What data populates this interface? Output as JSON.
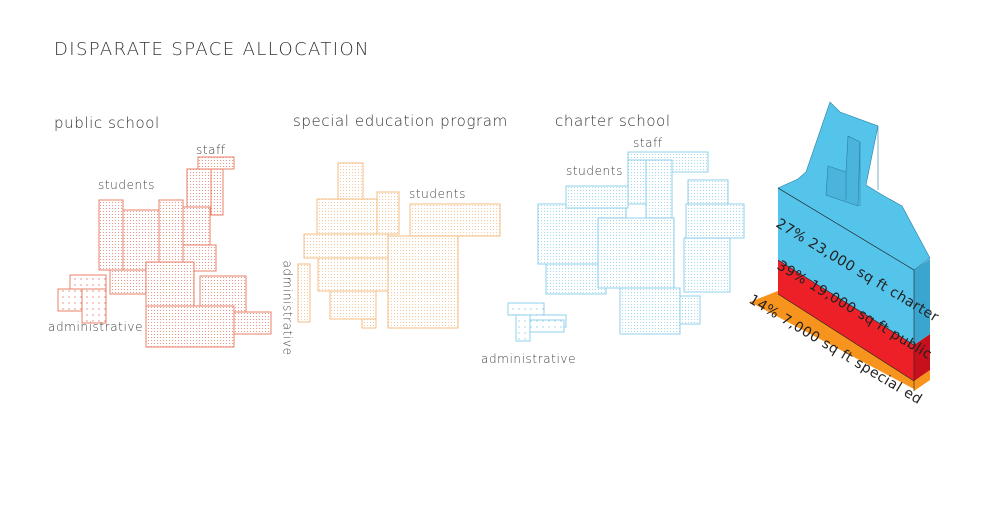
{
  "title": "DISPARATE SPACE ALLOCATION",
  "sections": {
    "public_school": {
      "heading": "public school",
      "labels": {
        "staff": "staff",
        "students": "students",
        "administrative": "administrative"
      }
    },
    "special_ed": {
      "heading": "special education program",
      "labels": {
        "students": "students",
        "administrative": "administrative"
      }
    },
    "charter_school": {
      "heading": "charter school",
      "labels": {
        "staff": "staff",
        "students": "students",
        "administrative": "administrative"
      }
    }
  },
  "chart_data": {
    "type": "stacked-isometric-block",
    "segments": [
      {
        "label": "27% 23,000 sq ft charter",
        "percent": 27,
        "sq_ft": 23000,
        "color": "#55c4ea"
      },
      {
        "label": "39% 19,000 sq ft public",
        "percent": 39,
        "sq_ft": 19000,
        "color": "#ee2027"
      },
      {
        "label": "14% 7,000 sq ft special ed",
        "percent": 14,
        "sq_ft": 7000,
        "color": "#f7941d"
      }
    ]
  },
  "colors": {
    "public": "#e8806a",
    "special_ed": "#f3be86",
    "charter": "#8fd0ea"
  }
}
